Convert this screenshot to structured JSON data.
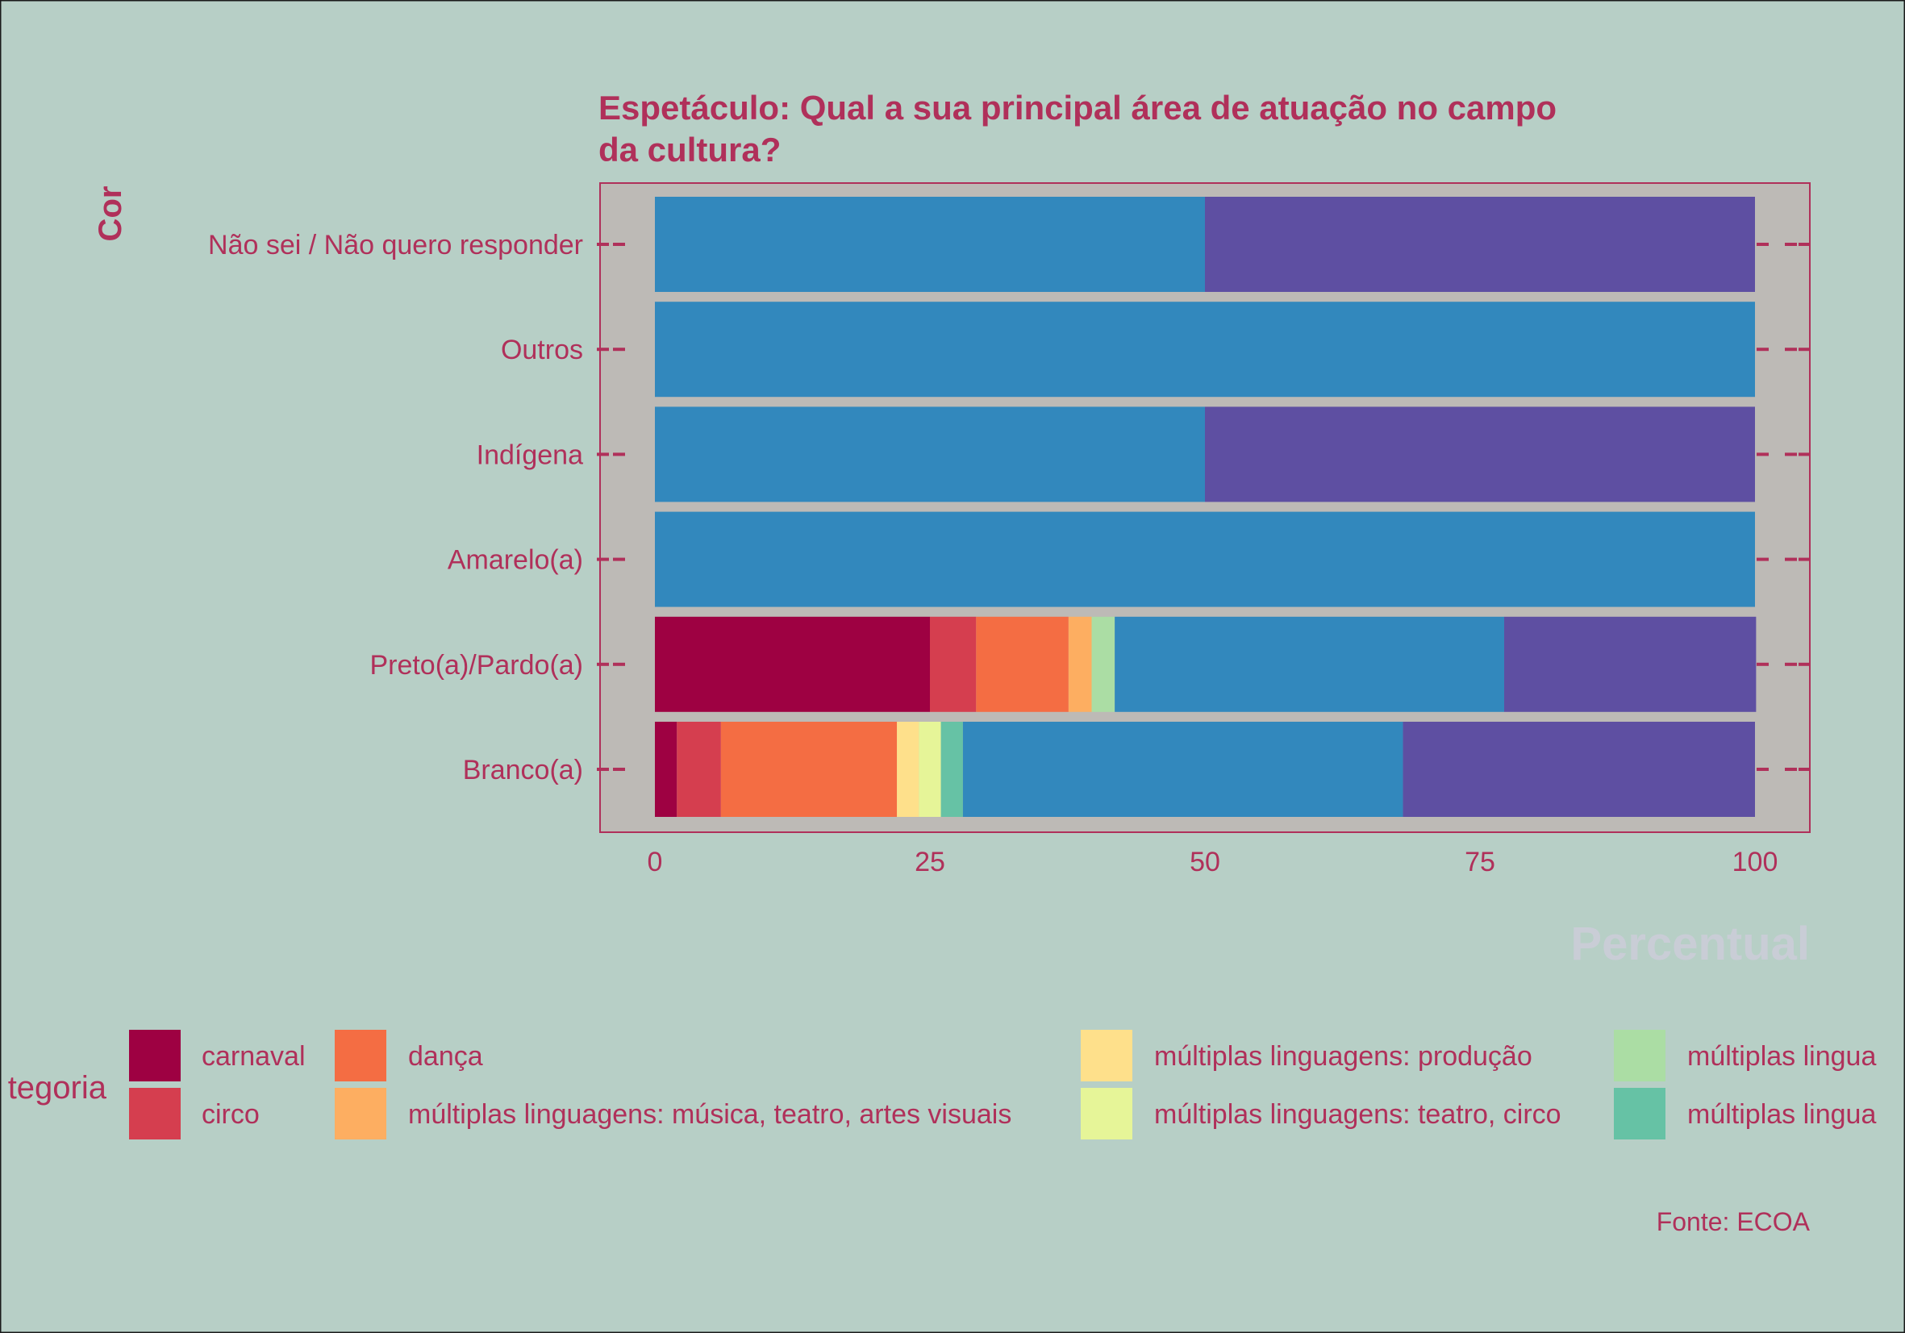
{
  "colors": {
    "background": "#B7CFC6",
    "panel": "#BDBAB6",
    "accent": "#B0305A",
    "xlabel_color": "#C9CDD6"
  },
  "chart_data": {
    "type": "bar",
    "orientation": "horizontal",
    "stacked": true,
    "title": "Espetáculo: Qual a sua principal área de atuação no campo da cultura?",
    "title_lines": [
      "Espetáculo: Qual a sua principal área de atuação no campo",
      "da cultura?"
    ],
    "xlabel": "Percentual",
    "ylabel": "Cor",
    "xlim": [
      0,
      100
    ],
    "xticks": [
      0,
      25,
      50,
      75,
      100
    ],
    "caption": "Fonte: ECOA",
    "legend_title": "tegoria",
    "legend_position": "bottom",
    "categories": [
      "Não sei / Não quero responder",
      "Outros",
      "Indígena",
      "Amarelo(a)",
      "Preto(a)/Pardo(a)",
      "Branco(a)"
    ],
    "series": [
      {
        "name": "carnaval",
        "color": "#9E0142",
        "values": [
          0,
          0,
          0,
          0,
          25,
          2
        ]
      },
      {
        "name": "circo",
        "color": "#D53E4F",
        "values": [
          0,
          0,
          0,
          0,
          4.2,
          4
        ]
      },
      {
        "name": "dança",
        "color": "#F46D43",
        "values": [
          0,
          0,
          0,
          0,
          8.4,
          16
        ]
      },
      {
        "name": "múltiplas linguagens: música, teatro, artes visuais",
        "color": "#FDAE61",
        "values": [
          0,
          0,
          0,
          0,
          2.1,
          0
        ]
      },
      {
        "name": "múltiplas linguagens: produção",
        "color": "#FEE08B",
        "values": [
          0,
          0,
          0,
          0,
          0,
          2
        ]
      },
      {
        "name": "múltiplas linguagens: teatro, circo",
        "color": "#E6F598",
        "values": [
          0,
          0,
          0,
          0,
          0,
          2
        ]
      },
      {
        "name": "múltiplas lingua",
        "color": "#ABDDA4",
        "values": [
          0,
          0,
          0,
          0,
          2.1,
          0
        ]
      },
      {
        "name": "múltiplas lingua",
        "color": "#66C2A5",
        "values": [
          0,
          0,
          0,
          0,
          0,
          2
        ]
      },
      {
        "name": "",
        "color": "#3288BD",
        "values": [
          50,
          100,
          50,
          100,
          35.4,
          40
        ]
      },
      {
        "name": "",
        "color": "#5E4FA2",
        "values": [
          50,
          0,
          50,
          0,
          22.9,
          32
        ]
      }
    ]
  }
}
